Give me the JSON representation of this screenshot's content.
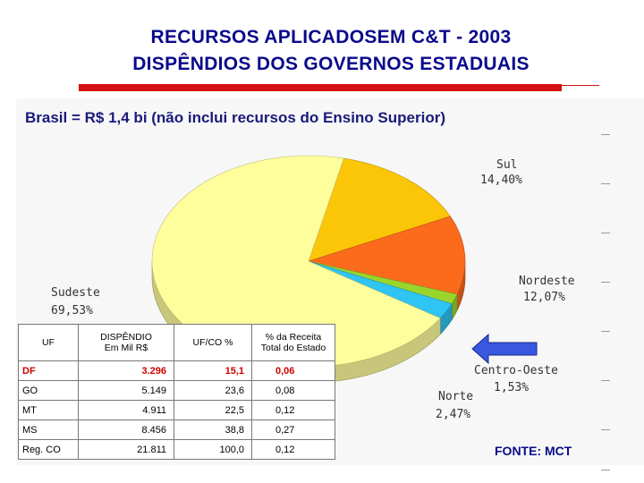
{
  "title_line1": "RECURSOS APLICADOSEM C&T - 2003",
  "title_line2": "DISPÊNDIOS DOS GOVERNOS ESTADUAIS",
  "subtitle": "Brasil = R$ 1,4 bi (não inclui recursos do Ensino Superior)",
  "source": "FONTE: MCT",
  "table": {
    "headers": [
      "UF",
      "DISPÊNDIO\nEm Mil R$",
      "UF/CO %",
      "% da Receita\nTotal do Estado"
    ],
    "rows": [
      [
        "DF",
        "3.296",
        "15,1",
        "0,06"
      ],
      [
        "GO",
        "5.149",
        "23,6",
        "0,08"
      ],
      [
        "MT",
        "4.911",
        "22,5",
        "0,12"
      ],
      [
        "MS",
        "8.456",
        "38,8",
        "0,27"
      ],
      [
        "Reg. CO",
        "21.811",
        "100,0",
        "0,12"
      ]
    ]
  },
  "chart_data": {
    "type": "pie",
    "title": "",
    "slices": [
      {
        "name": "Sudeste",
        "value": 69.53,
        "label": "69,53%",
        "color": "#fffe9c"
      },
      {
        "name": "Sul",
        "value": 14.4,
        "label": "14,40%",
        "color": "#fcc608"
      },
      {
        "name": "Nordeste",
        "value": 12.07,
        "label": "12,07%",
        "color": "#fc6a1c"
      },
      {
        "name": "Centro-Oeste",
        "value": 1.53,
        "label": "1,53%",
        "color": "#9ad52c"
      },
      {
        "name": "Norte",
        "value": 2.47,
        "label": "2,47%",
        "color": "#2ec4f4"
      }
    ],
    "arrow_color": "#3858e0"
  }
}
